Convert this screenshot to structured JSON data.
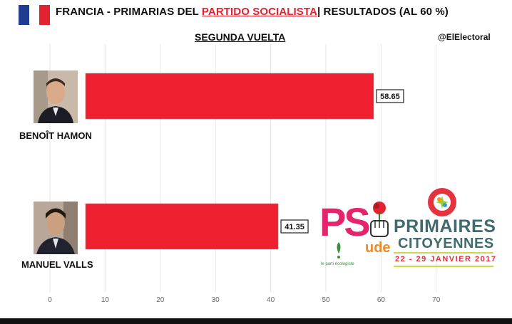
{
  "header": {
    "title_pre": "FRANCIA - PRIMARIAS DEL ",
    "title_highlight": "PARTIDO SOCIALISTA",
    "title_post": "| RESULTADOS (AL 60 %)",
    "flag_colors": [
      "#1f3c8f",
      "#ffffff",
      "#e3222f"
    ]
  },
  "round_title": "SEGUNDA VUELTA",
  "handle": "@ElElectoral",
  "candidates": [
    {
      "name": "BENOÎT HAMON"
    },
    {
      "name": "MANUEL VALLS"
    }
  ],
  "logos": {
    "ps": "PS",
    "primaires": "PRIMAIRES",
    "citoyennes": "CITOYENNES",
    "dates": "22 - 29 JANVIER 2017",
    "ecologiste": "le parti écologiste",
    "ude": "ude"
  },
  "colors": {
    "bar": "#ee1f2e",
    "grid": "#e6e6e6",
    "bar_edge": "#888888"
  },
  "chart_data": {
    "type": "bar",
    "orientation": "horizontal",
    "categories": [
      "BENOÎT HAMON",
      "MANUEL VALLS"
    ],
    "values": [
      58.65,
      41.35
    ],
    "value_labels": [
      "58.65",
      "41.35"
    ],
    "title": "SEGUNDA VUELTA",
    "xlabel": "",
    "ylabel": "",
    "xlim": [
      0,
      70
    ],
    "x_ticks": [
      0,
      10,
      20,
      30,
      40,
      50,
      60,
      70
    ],
    "x_tick_labels": [
      "0",
      "10",
      "20",
      "30",
      "40",
      "50",
      "60",
      "70"
    ],
    "grid": true
  }
}
